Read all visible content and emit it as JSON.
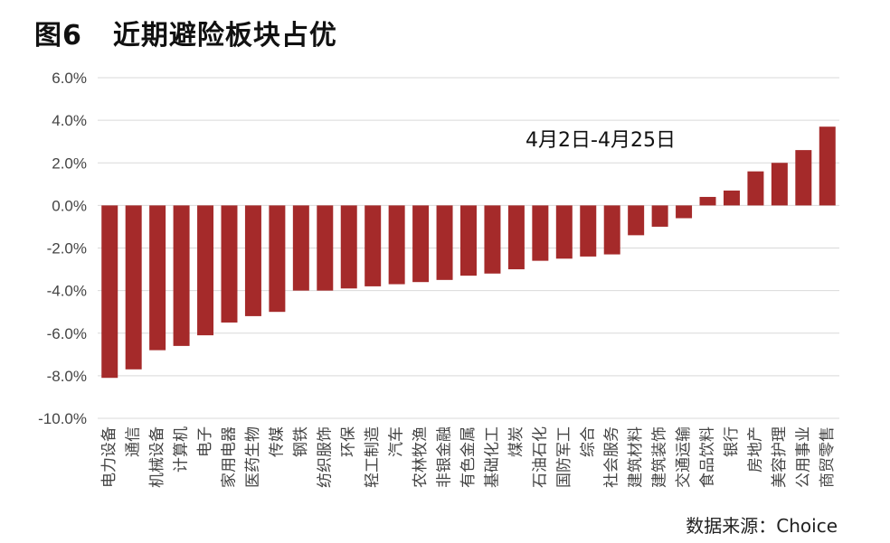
{
  "header": {
    "figure_no": "图6",
    "title": "近期避险板块占优"
  },
  "source": "数据来源：Choice",
  "colors": {
    "bar": "#a52a2a",
    "grid": "#d9d9d9",
    "axis_text": "#444444"
  },
  "chart_data": {
    "type": "bar",
    "annotation": "4月2日-4月25日",
    "ylim": [
      -10,
      6
    ],
    "yticks": [
      6,
      4,
      2,
      0,
      -2,
      -4,
      -6,
      -8,
      -10
    ],
    "ytick_labels": [
      "6.0%",
      "4.0%",
      "2.0%",
      "0.0%",
      "-2.0%",
      "-4.0%",
      "-6.0%",
      "-8.0%",
      "-10.0%"
    ],
    "grid": true,
    "categories": [
      "电力设备",
      "通信",
      "机械设备",
      "计算机",
      "电子",
      "家用电器",
      "医药生物",
      "传媒",
      "钢铁",
      "纺织服饰",
      "环保",
      "轻工制造",
      "汽车",
      "农林牧渔",
      "非银金融",
      "有色金属",
      "基础化工",
      "煤炭",
      "石油石化",
      "国防军工",
      "综合",
      "社会服务",
      "建筑材料",
      "建筑装饰",
      "交通运输",
      "食品饮料",
      "银行",
      "房地产",
      "美容护理",
      "公用事业",
      "商贸零售"
    ],
    "values": [
      -8.1,
      -7.7,
      -6.8,
      -6.6,
      -6.1,
      -5.5,
      -5.2,
      -5.0,
      -4.0,
      -4.0,
      -3.9,
      -3.8,
      -3.7,
      -3.6,
      -3.5,
      -3.3,
      -3.2,
      -3.0,
      -2.6,
      -2.5,
      -2.4,
      -2.3,
      -1.4,
      -1.0,
      -0.6,
      0.4,
      0.7,
      1.6,
      2.0,
      2.6,
      3.7
    ]
  }
}
